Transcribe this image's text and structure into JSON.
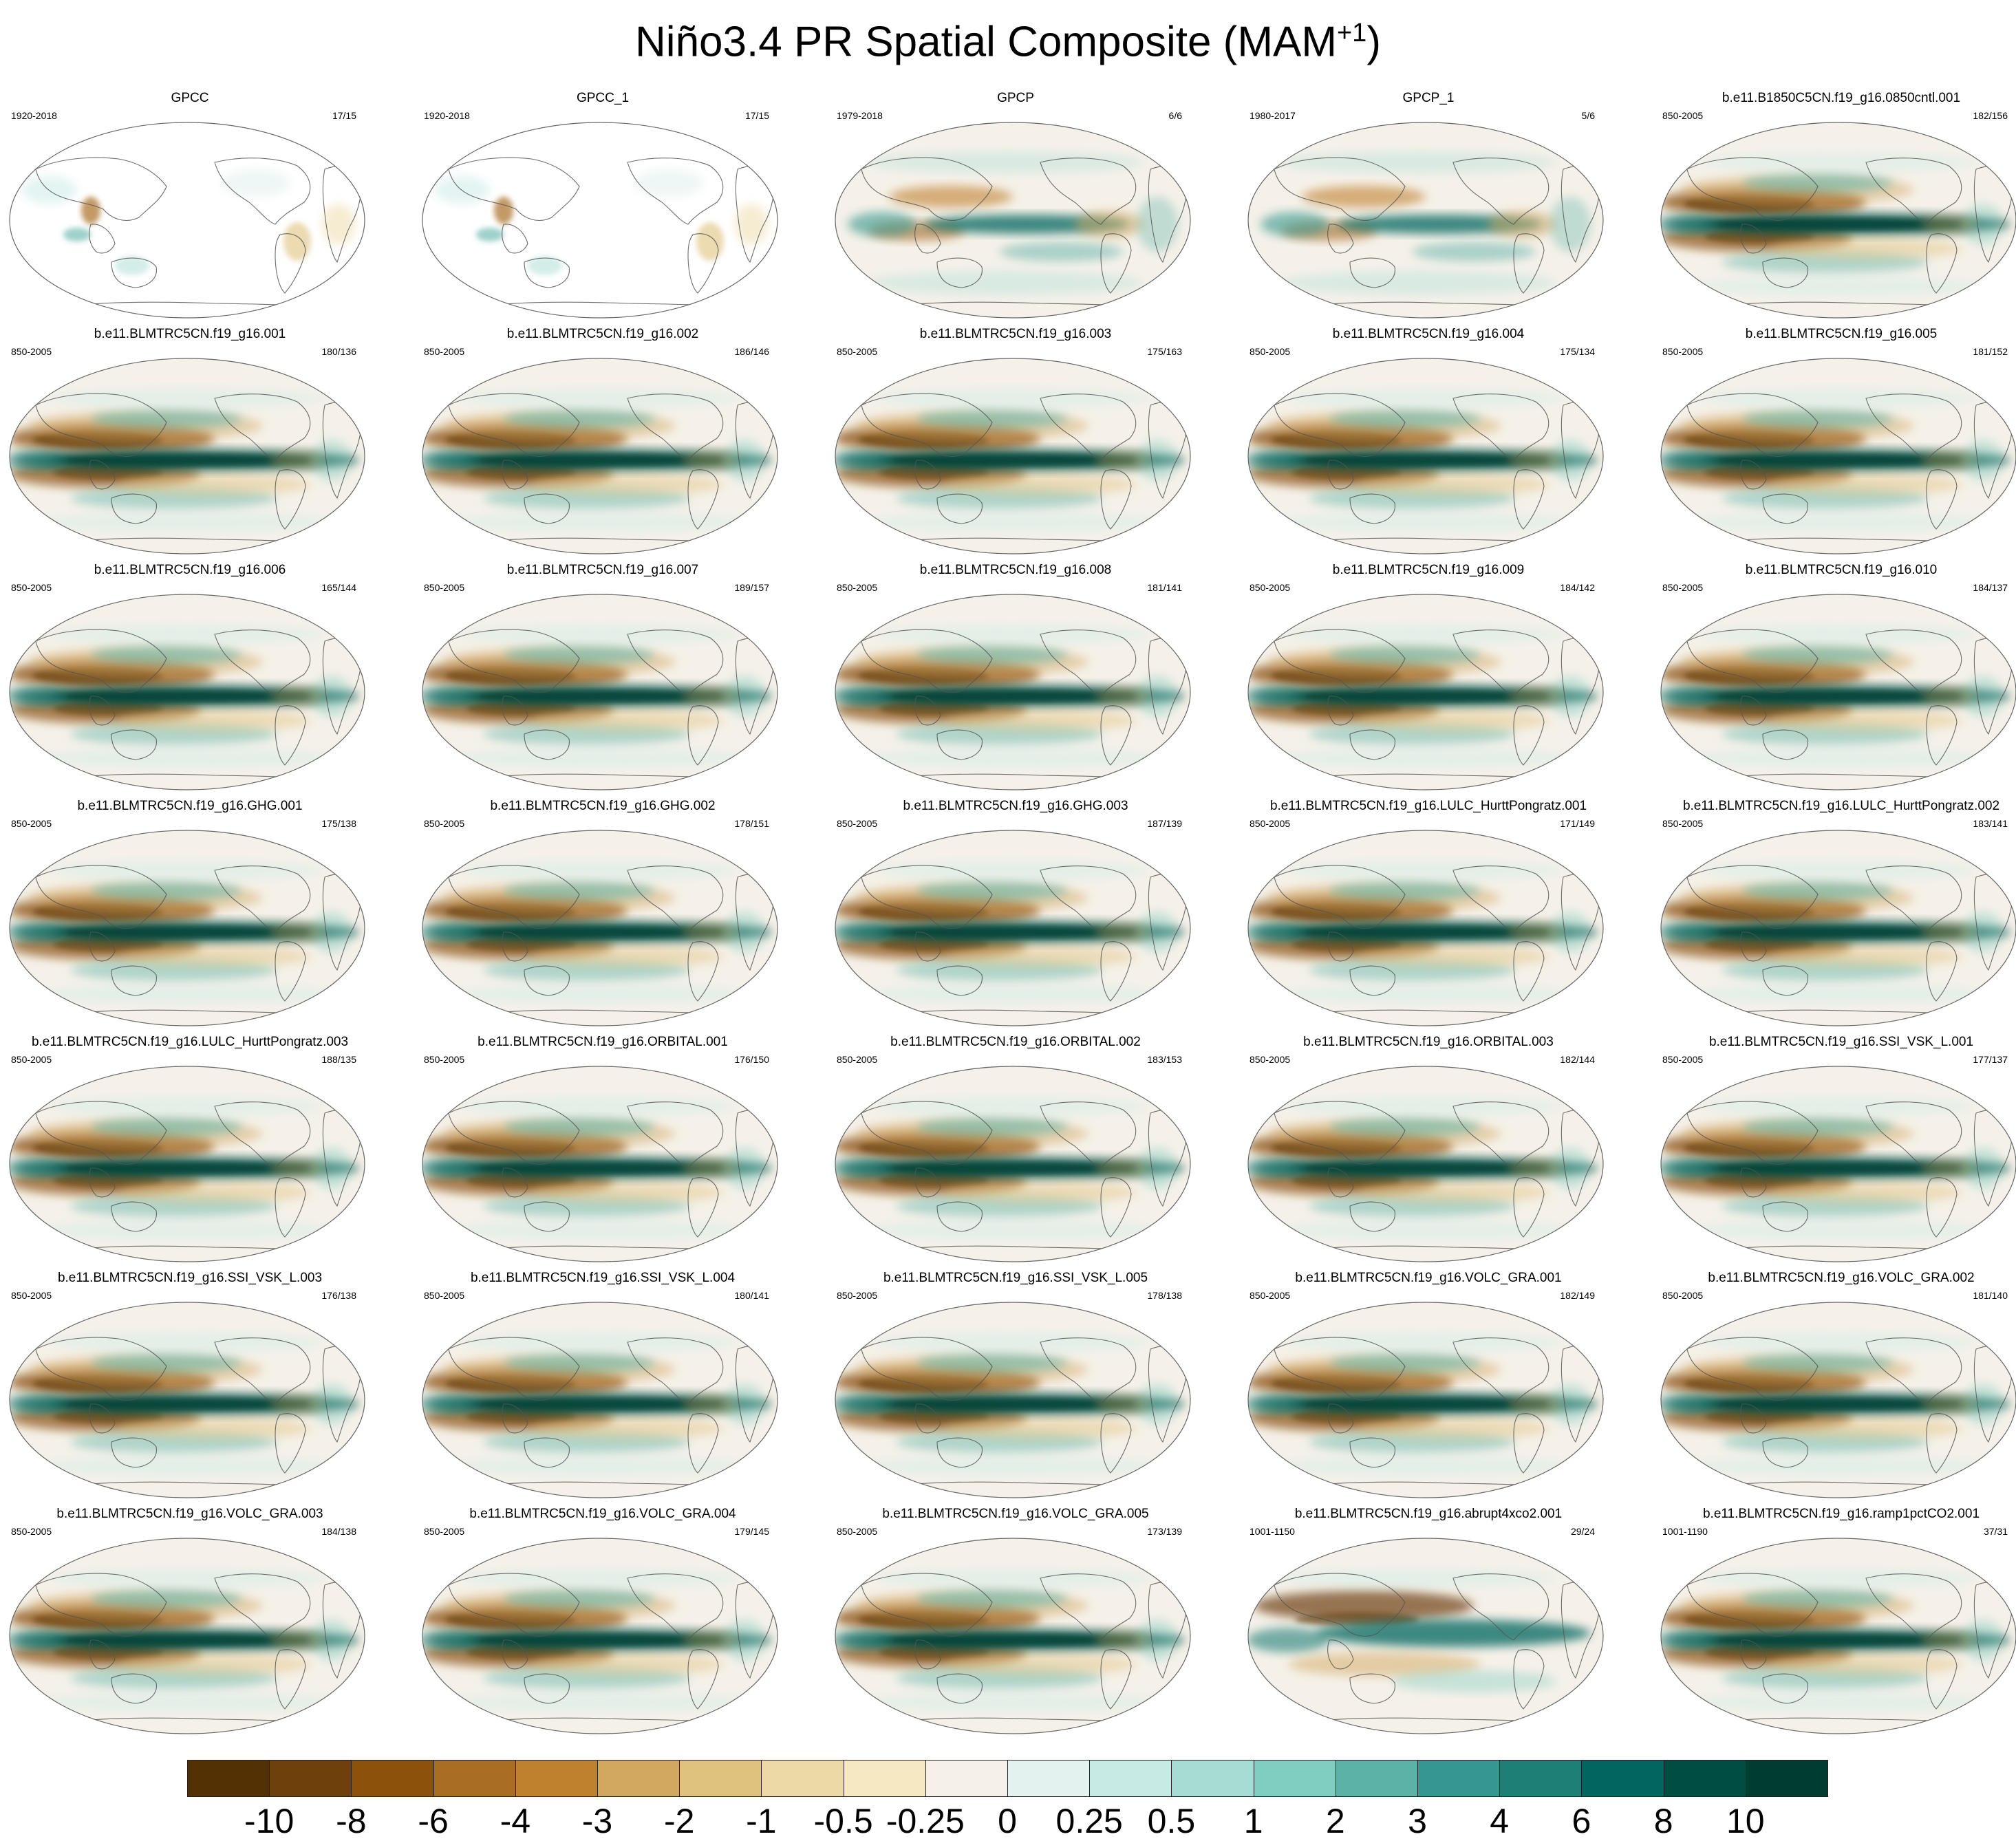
{
  "title": "Niño3.4 PR Spatial Composite (MAM",
  "title_sup": "+1",
  "title_end": ")",
  "chart_data": {
    "type": "heatmap",
    "layout": "7 rows x 5 columns of global maps",
    "panels": [
      {
        "title": "GPCC",
        "period": "1920-2018",
        "count": "17/15",
        "pattern": "obs_land"
      },
      {
        "title": "GPCC_1",
        "period": "1920-2018",
        "count": "17/15",
        "pattern": "obs_land"
      },
      {
        "title": "GPCP",
        "period": "1979-2018",
        "count": "6/6",
        "pattern": "obs"
      },
      {
        "title": "GPCP_1",
        "period": "1980-2017",
        "count": "5/6",
        "pattern": "obs"
      },
      {
        "title": "b.e11.B1850C5CN.f19_g16.0850cntl.001",
        "period": "850-2005",
        "count": "182/156",
        "pattern": "model"
      },
      {
        "title": "b.e11.BLMTRC5CN.f19_g16.001",
        "period": "850-2005",
        "count": "180/136",
        "pattern": "model"
      },
      {
        "title": "b.e11.BLMTRC5CN.f19_g16.002",
        "period": "850-2005",
        "count": "186/146",
        "pattern": "model"
      },
      {
        "title": "b.e11.BLMTRC5CN.f19_g16.003",
        "period": "850-2005",
        "count": "175/163",
        "pattern": "model"
      },
      {
        "title": "b.e11.BLMTRC5CN.f19_g16.004",
        "period": "850-2005",
        "count": "175/134",
        "pattern": "model"
      },
      {
        "title": "b.e11.BLMTRC5CN.f19_g16.005",
        "period": "850-2005",
        "count": "181/152",
        "pattern": "model"
      },
      {
        "title": "b.e11.BLMTRC5CN.f19_g16.006",
        "period": "850-2005",
        "count": "165/144",
        "pattern": "model"
      },
      {
        "title": "b.e11.BLMTRC5CN.f19_g16.007",
        "period": "850-2005",
        "count": "189/157",
        "pattern": "model"
      },
      {
        "title": "b.e11.BLMTRC5CN.f19_g16.008",
        "period": "850-2005",
        "count": "181/141",
        "pattern": "model"
      },
      {
        "title": "b.e11.BLMTRC5CN.f19_g16.009",
        "period": "850-2005",
        "count": "184/142",
        "pattern": "model"
      },
      {
        "title": "b.e11.BLMTRC5CN.f19_g16.010",
        "period": "850-2005",
        "count": "184/137",
        "pattern": "model"
      },
      {
        "title": "b.e11.BLMTRC5CN.f19_g16.GHG.001",
        "period": "850-2005",
        "count": "175/138",
        "pattern": "model"
      },
      {
        "title": "b.e11.BLMTRC5CN.f19_g16.GHG.002",
        "period": "850-2005",
        "count": "178/151",
        "pattern": "model"
      },
      {
        "title": "b.e11.BLMTRC5CN.f19_g16.GHG.003",
        "period": "850-2005",
        "count": "187/139",
        "pattern": "model"
      },
      {
        "title": "b.e11.BLMTRC5CN.f19_g16.LULC_HurttPongratz.001",
        "period": "850-2005",
        "count": "171/149",
        "pattern": "model"
      },
      {
        "title": "b.e11.BLMTRC5CN.f19_g16.LULC_HurttPongratz.002",
        "period": "850-2005",
        "count": "183/141",
        "pattern": "model"
      },
      {
        "title": "b.e11.BLMTRC5CN.f19_g16.LULC_HurttPongratz.003",
        "period": "850-2005",
        "count": "188/135",
        "pattern": "model"
      },
      {
        "title": "b.e11.BLMTRC5CN.f19_g16.ORBITAL.001",
        "period": "850-2005",
        "count": "176/150",
        "pattern": "model"
      },
      {
        "title": "b.e11.BLMTRC5CN.f19_g16.ORBITAL.002",
        "period": "850-2005",
        "count": "183/153",
        "pattern": "model"
      },
      {
        "title": "b.e11.BLMTRC5CN.f19_g16.ORBITAL.003",
        "period": "850-2005",
        "count": "182/144",
        "pattern": "model"
      },
      {
        "title": "b.e11.BLMTRC5CN.f19_g16.SSI_VSK_L.001",
        "period": "850-2005",
        "count": "177/137",
        "pattern": "model"
      },
      {
        "title": "b.e11.BLMTRC5CN.f19_g16.SSI_VSK_L.003",
        "period": "850-2005",
        "count": "176/138",
        "pattern": "model"
      },
      {
        "title": "b.e11.BLMTRC5CN.f19_g16.SSI_VSK_L.004",
        "period": "850-2005",
        "count": "180/141",
        "pattern": "model"
      },
      {
        "title": "b.e11.BLMTRC5CN.f19_g16.SSI_VSK_L.005",
        "period": "850-2005",
        "count": "178/138",
        "pattern": "model"
      },
      {
        "title": "b.e11.BLMTRC5CN.f19_g16.VOLC_GRA.001",
        "period": "850-2005",
        "count": "182/149",
        "pattern": "model"
      },
      {
        "title": "b.e11.BLMTRC5CN.f19_g16.VOLC_GRA.002",
        "period": "850-2005",
        "count": "181/140",
        "pattern": "model"
      },
      {
        "title": "b.e11.BLMTRC5CN.f19_g16.VOLC_GRA.003",
        "period": "850-2005",
        "count": "184/138",
        "pattern": "model"
      },
      {
        "title": "b.e11.BLMTRC5CN.f19_g16.VOLC_GRA.004",
        "period": "850-2005",
        "count": "179/145",
        "pattern": "model"
      },
      {
        "title": "b.e11.BLMTRC5CN.f19_g16.VOLC_GRA.005",
        "period": "850-2005",
        "count": "173/139",
        "pattern": "model"
      },
      {
        "title": "b.e11.BLMTRC5CN.f19_g16.abrupt4xco2.001",
        "period": "1001-1150",
        "count": "29/24",
        "pattern": "abrupt"
      },
      {
        "title": "b.e11.BLMTRC5CN.f19_g16.ramp1pctCO2.001",
        "period": "1001-1190",
        "count": "37/31",
        "pattern": "model"
      }
    ],
    "colorbar": {
      "labels": [
        "-10",
        "-8",
        "-6",
        "-4",
        "-3",
        "-2",
        "-1",
        "-0.5",
        "-0.25",
        "0",
        "0.25",
        "0.5",
        "1",
        "2",
        "3",
        "4",
        "6",
        "8",
        "10"
      ],
      "colors": [
        "#543005",
        "#6e400b",
        "#8c510a",
        "#a96d24",
        "#bf812d",
        "#d2a75f",
        "#dfc27d",
        "#edd9a6",
        "#f6e8c3",
        "#f5f1e9",
        "#e3f2ef",
        "#c7eae5",
        "#a7dcd4",
        "#80cdc1",
        "#5cb2a7",
        "#35978f",
        "#1d7f76",
        "#01665e",
        "#004e43",
        "#003c30"
      ]
    }
  }
}
